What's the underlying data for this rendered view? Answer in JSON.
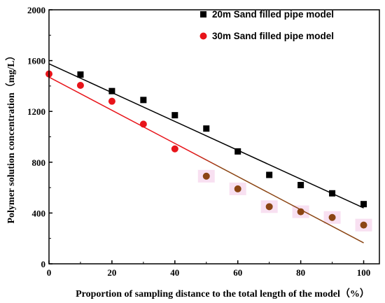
{
  "chart_data": {
    "type": "scatter",
    "xlabel": "Proportion of sampling distance to the total length of the model（%）",
    "ylabel": "Polymer solution concentration（mg/L）",
    "xlim": [
      0,
      105
    ],
    "ylim": [
      0,
      2000
    ],
    "x_ticks": [
      "0",
      "20",
      "40",
      "60",
      "80",
      "100"
    ],
    "y_ticks": [
      "0",
      "400",
      "800",
      "1200",
      "1600",
      "2000"
    ],
    "legend_position": "top-right",
    "series": [
      {
        "name": "20m Sand filled pipe model",
        "marker": "square",
        "color": "#000000",
        "x": [
          10,
          20,
          30,
          40,
          50,
          60,
          70,
          80,
          90,
          100
        ],
        "y": [
          1490,
          1360,
          1290,
          1170,
          1065,
          885,
          700,
          620,
          555,
          470
        ],
        "fit": {
          "x": [
            0,
            100
          ],
          "y": [
            1575,
            440
          ],
          "color": "#000000"
        }
      },
      {
        "name": "30m Sand filled pipe model",
        "marker": "circle",
        "color": "#e8141a",
        "x": [
          0,
          10,
          20,
          30,
          40,
          50,
          60,
          70,
          80,
          90,
          100
        ],
        "y": [
          1495,
          1405,
          1280,
          1100,
          905,
          690,
          590,
          450,
          410,
          365,
          305
        ],
        "point_colors": [
          "#e8141a",
          "#e8141a",
          "#e8141a",
          "#e8141a",
          "#e8141a",
          "#8b4513",
          "#8b4513",
          "#8b4513",
          "#8b4513",
          "#8b4513",
          "#8b4513"
        ],
        "fit": {
          "x": [
            0,
            100
          ],
          "y": [
            1470,
            165
          ],
          "colors": [
            "#e8141a",
            "#8b4513"
          ]
        }
      }
    ]
  }
}
